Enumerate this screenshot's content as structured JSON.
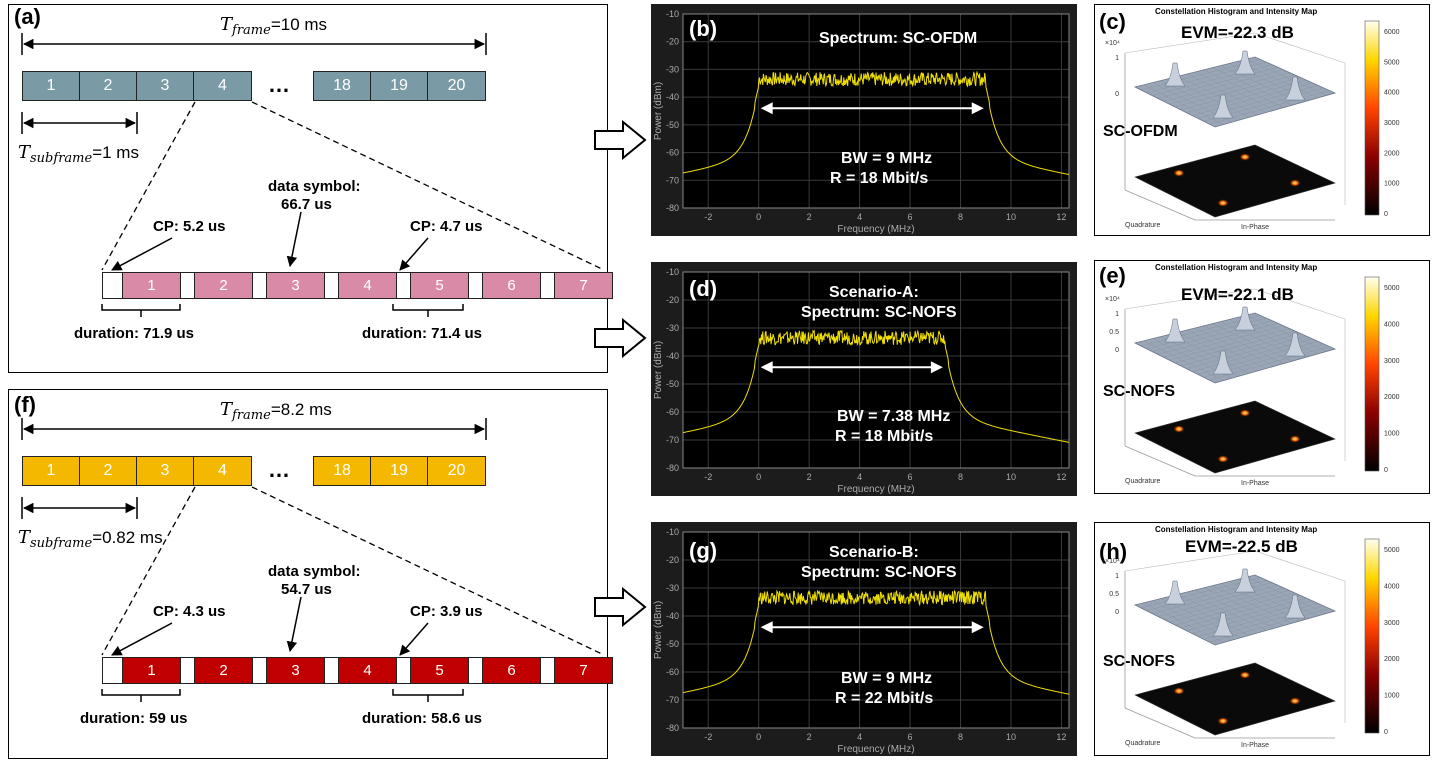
{
  "panel_a": {
    "label": "(a)",
    "t_frame_sym": "T",
    "t_frame_sub": "frame",
    "t_frame_val": "=10 ms",
    "t_sub_sym": "T",
    "t_sub_sub": "subframe",
    "t_sub_val": "=1 ms",
    "ellipsis": "…",
    "blocks_left": [
      "1",
      "2",
      "3",
      "4"
    ],
    "blocks_right": [
      "18",
      "19",
      "20"
    ],
    "block_color": "#7a9ba6",
    "symbol_color": "#d98aa6",
    "symbol_text_color": "#ffffff",
    "symbols": [
      "1",
      "2",
      "3",
      "4",
      "5",
      "6",
      "7"
    ],
    "cp1": "CP: 5.2 us",
    "cp2": "CP: 4.7 us",
    "data_symbol_1": "data symbol:",
    "data_symbol_2": "66.7 us",
    "dur1": "duration: 71.9 us",
    "dur2": "duration: 71.4 us"
  },
  "panel_f": {
    "label": "(f)",
    "t_frame_sym": "T",
    "t_frame_sub": "frame",
    "t_frame_val": "=8.2 ms",
    "t_sub_sym": "T",
    "t_sub_sub": "subframe",
    "t_sub_val": "=0.82 ms",
    "ellipsis": "…",
    "blocks_left": [
      "1",
      "2",
      "3",
      "4"
    ],
    "blocks_right": [
      "18",
      "19",
      "20"
    ],
    "block_color": "#f5b800",
    "symbol_color": "#c00000",
    "symbol_text_color": "#ffffff",
    "symbols": [
      "1",
      "2",
      "3",
      "4",
      "5",
      "6",
      "7"
    ],
    "cp1": "CP: 4.3 us",
    "cp2": "CP: 3.9 us",
    "data_symbol_1": "data symbol:",
    "data_symbol_2": "54.7 us",
    "dur1": "duration: 59 us",
    "dur2": "duration: 58.6 us"
  },
  "spectra": [
    {
      "label": "(b)",
      "title_1": "Spectrum: SC-OFDM",
      "title_2": "",
      "bw": "BW = 9 MHz",
      "rate": "R = 18 Mbit/s",
      "xlabel": "Frequency (MHz)",
      "ylabel": "Power (dBm)",
      "yticks": [
        "-10",
        "-20",
        "-30",
        "-40",
        "-50",
        "-60",
        "-70",
        "-80"
      ],
      "xticks": [
        "-2",
        "0",
        "2",
        "4",
        "6",
        "8",
        "10",
        "12"
      ],
      "bandwidth_mhz": 9
    },
    {
      "label": "(d)",
      "title_1": "Scenario-A:",
      "title_2": "Spectrum: SC-NOFS",
      "bw": "BW = 7.38 MHz",
      "rate": "R = 18 Mbit/s",
      "xlabel": "Frequency (MHz)",
      "ylabel": "Power (dBm)",
      "yticks": [
        "-10",
        "-20",
        "-30",
        "-40",
        "-50",
        "-60",
        "-70",
        "-80"
      ],
      "xticks": [
        "-2",
        "0",
        "2",
        "4",
        "6",
        "8",
        "10",
        "12"
      ],
      "bandwidth_mhz": 7.38
    },
    {
      "label": "(g)",
      "title_1": "Scenario-B:",
      "title_2": "Spectrum: SC-NOFS",
      "bw": "BW = 9 MHz",
      "rate": "R = 22 Mbit/s",
      "xlabel": "Frequency (MHz)",
      "ylabel": "Power (dBm)",
      "yticks": [
        "-10",
        "-20",
        "-30",
        "-40",
        "-50",
        "-60",
        "-70",
        "-80"
      ],
      "xticks": [
        "-2",
        "0",
        "2",
        "4",
        "6",
        "8",
        "10",
        "12"
      ],
      "bandwidth_mhz": 9
    }
  ],
  "constellations": [
    {
      "label": "(c)",
      "title": "Constellation Histogram and Intensity Map",
      "evm": "EVM=-22.3 dB",
      "scheme": "SC-OFDM",
      "exp": "×10⁴",
      "zticks": [
        "1",
        "0"
      ],
      "cbar": [
        "6000",
        "5000",
        "4000",
        "3000",
        "2000",
        "1000",
        "0"
      ],
      "quadrature": "Quadrature",
      "inphase": "In-Phase"
    },
    {
      "label": "(e)",
      "title": "Constellation Histogram and Intensity Map",
      "evm": "EVM=-22.1 dB",
      "scheme": "SC-NOFS",
      "exp": "×10⁴",
      "zticks": [
        "1",
        "0.5",
        "0"
      ],
      "cbar": [
        "5000",
        "4000",
        "3000",
        "2000",
        "1000",
        "0"
      ],
      "quadrature": "Quadrature",
      "inphase": "In-Phase"
    },
    {
      "label": "(h)",
      "title": "Constellation Histogram and Intensity Map",
      "evm": "EVM=-22.5 dB",
      "scheme": "SC-NOFS",
      "exp": "×10⁴",
      "zticks": [
        "1",
        "0.5",
        "0"
      ],
      "cbar": [
        "5000",
        "4000",
        "3000",
        "2000",
        "1000",
        "0"
      ],
      "quadrature": "Quadrature",
      "inphase": "In-Phase"
    }
  ]
}
